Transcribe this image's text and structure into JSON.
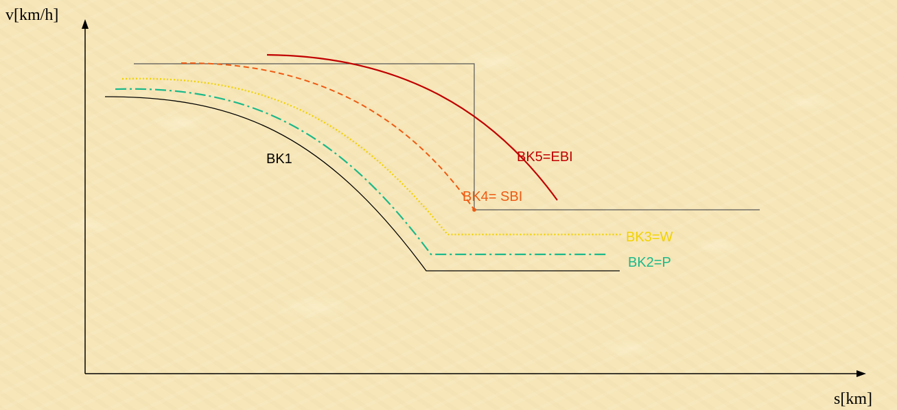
{
  "chart_data": {
    "type": "line",
    "xlabel": "s[km]",
    "ylabel": "v[km/h]",
    "grid": false,
    "series": [
      {
        "name": "BK1",
        "color": "#000000",
        "style": "solid"
      },
      {
        "name": "BK2=P",
        "color": "#1ab88a",
        "style": "dash-dot"
      },
      {
        "name": "BK3=W",
        "color": "#f2d200",
        "style": "dotted"
      },
      {
        "name": "BK4= SBI",
        "color": "#ee5a12",
        "style": "dashed"
      },
      {
        "name": "BK5=EBI",
        "color": "#c00000",
        "style": "solid"
      },
      {
        "name": "",
        "color": "#555555",
        "style": "solid"
      }
    ]
  }
}
